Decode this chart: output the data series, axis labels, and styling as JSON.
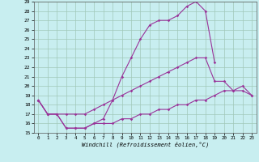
{
  "xlabel": "Windchill (Refroidissement éolien,°C)",
  "x_values": [
    0,
    1,
    2,
    3,
    4,
    5,
    6,
    7,
    8,
    9,
    10,
    11,
    12,
    13,
    14,
    15,
    16,
    17,
    18,
    19,
    20,
    21,
    22,
    23
  ],
  "upper_y": [
    18.5,
    17.0,
    17.0,
    15.5,
    15.5,
    15.5,
    16.0,
    16.5,
    18.5,
    21.0,
    23.0,
    25.0,
    26.5,
    27.0,
    27.0,
    27.5,
    28.5,
    29.0,
    28.0,
    22.5,
    null,
    null,
    null,
    null
  ],
  "mid_y": [
    18.5,
    17.0,
    17.0,
    17.0,
    17.0,
    17.0,
    17.5,
    18.0,
    18.5,
    19.0,
    19.5,
    20.0,
    20.5,
    21.0,
    21.5,
    22.0,
    22.5,
    23.0,
    23.0,
    20.5,
    20.5,
    19.5,
    20.0,
    19.0
  ],
  "low_y": [
    18.5,
    17.0,
    17.0,
    15.5,
    15.5,
    15.5,
    16.0,
    16.0,
    16.0,
    16.5,
    16.5,
    17.0,
    17.0,
    17.5,
    17.5,
    18.0,
    18.0,
    18.5,
    18.5,
    19.0,
    19.5,
    19.5,
    19.5,
    19.0
  ],
  "ylim": [
    15,
    29
  ],
  "xlim_min": -0.5,
  "xlim_max": 23.5,
  "yticks": [
    15,
    16,
    17,
    18,
    19,
    20,
    21,
    22,
    23,
    24,
    25,
    26,
    27,
    28,
    29
  ],
  "xticks": [
    0,
    1,
    2,
    3,
    4,
    5,
    6,
    7,
    8,
    9,
    10,
    11,
    12,
    13,
    14,
    15,
    16,
    17,
    18,
    19,
    20,
    21,
    22,
    23
  ],
  "line_color": "#993399",
  "bg_color": "#c8eef0",
  "grid_color": "#a0c8b8",
  "marker": "D",
  "marker_size": 1.8,
  "linewidth": 0.8
}
